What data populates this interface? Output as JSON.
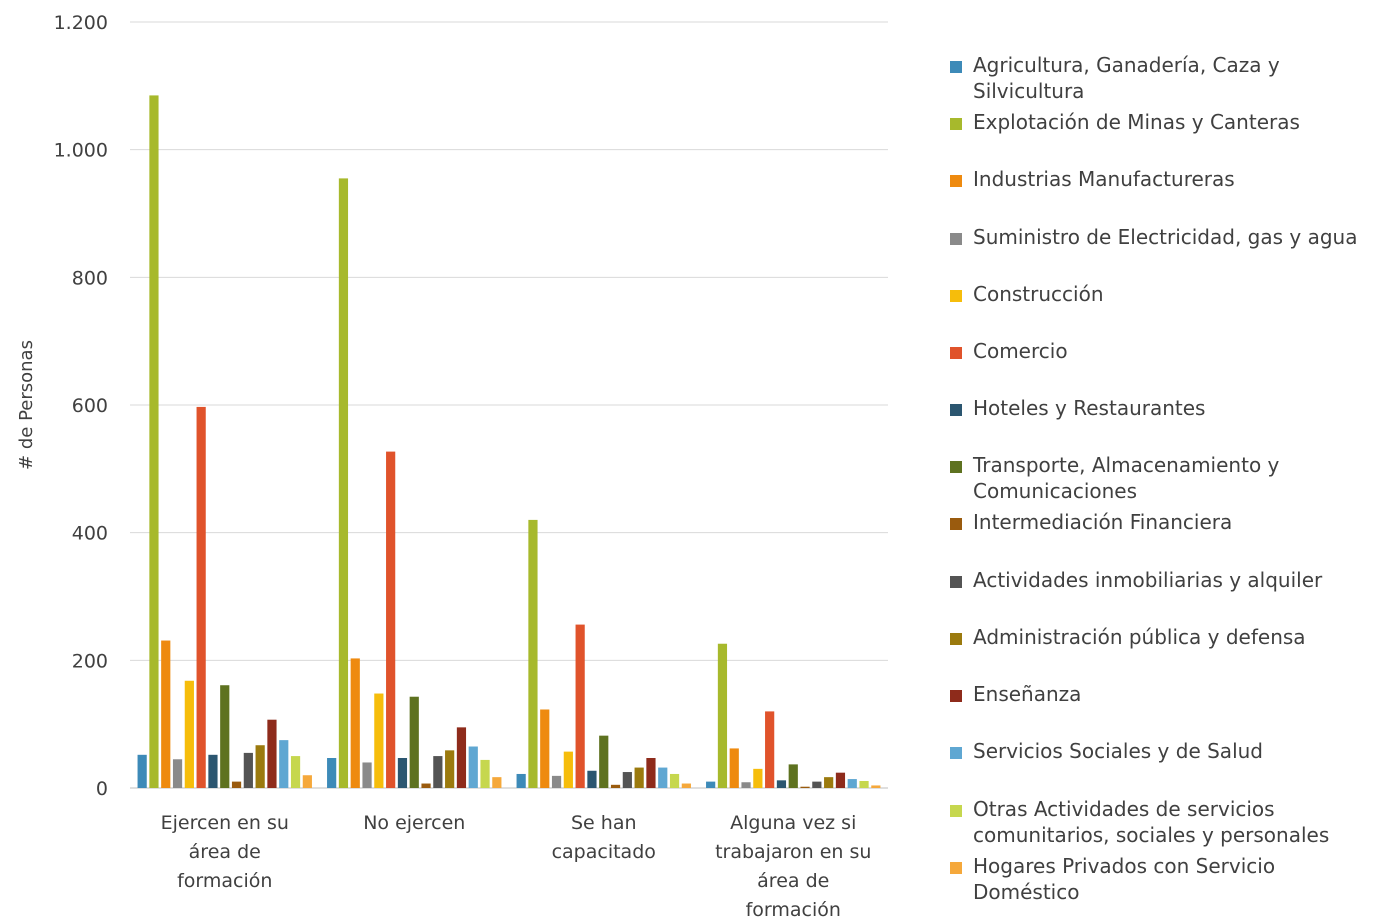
{
  "chart_data": {
    "type": "bar",
    "title": "",
    "xlabel": "",
    "ylabel": "# de Personas",
    "ylim": [
      0,
      1200
    ],
    "yticks": [
      0,
      200,
      400,
      600,
      800,
      1000,
      1200
    ],
    "ytick_labels": [
      "0",
      "200",
      "400",
      "600",
      "800",
      "1.000",
      "1.200"
    ],
    "grid": true,
    "legend_position": "right",
    "categories": [
      [
        "Ejercen en su",
        "área de",
        "formación"
      ],
      [
        "No ejercen"
      ],
      [
        "Se han",
        "capacitado"
      ],
      [
        "Alguna vez si",
        "trabajaron en su",
        "área de",
        "formación"
      ]
    ],
    "series": [
      {
        "name": "Agricultura, Ganadería, Caza y Silvicultura",
        "color": "#3d8ab8",
        "values": [
          52,
          47,
          22,
          10
        ]
      },
      {
        "name": "Explotación de Minas y Canteras",
        "color": "#a7b92c",
        "values": [
          1085,
          955,
          420,
          226
        ]
      },
      {
        "name": "Industrias Manufactureras",
        "color": "#ee8a0f",
        "values": [
          231,
          203,
          123,
          62
        ]
      },
      {
        "name": "Suministro de Electricidad, gas y agua",
        "color": "#8a8a8a",
        "values": [
          45,
          40,
          19,
          9
        ]
      },
      {
        "name": "Construcción",
        "color": "#f6bd0b",
        "values": [
          168,
          148,
          57,
          30
        ]
      },
      {
        "name": "Comercio",
        "color": "#e0532b",
        "values": [
          597,
          527,
          256,
          120
        ]
      },
      {
        "name": "Hoteles y Restaurantes",
        "color": "#2b5670",
        "values": [
          52,
          47,
          27,
          12
        ]
      },
      {
        "name": "Transporte, Almacenamiento y Comunicaciones",
        "color": "#5e7220",
        "values": [
          161,
          143,
          82,
          37
        ]
      },
      {
        "name": "Intermediación Financiera",
        "color": "#9a5b0e",
        "values": [
          10,
          7,
          5,
          2
        ]
      },
      {
        "name": "Actividades inmobiliarias y  alquiler",
        "color": "#545454",
        "values": [
          55,
          50,
          25,
          10
        ]
      },
      {
        "name": "Administración pública y defensa",
        "color": "#9b7a0e",
        "values": [
          67,
          59,
          32,
          17
        ]
      },
      {
        "name": "Enseñanza",
        "color": "#8e2b1b",
        "values": [
          107,
          95,
          47,
          24
        ]
      },
      {
        "name": "Servicios Sociales y de Salud",
        "color": "#5fa7d2",
        "values": [
          75,
          65,
          32,
          14
        ]
      },
      {
        "name": "Otras Actividades de servicios comunitarios, sociales y personales",
        "color": "#c6d74e",
        "values": [
          50,
          44,
          22,
          11
        ]
      },
      {
        "name": "Hogares Privados con Servicio Doméstico",
        "color": "#f5a83b",
        "values": [
          20,
          17,
          7,
          4
        ]
      }
    ]
  },
  "legend_lines": [
    [
      "Agricultura, Ganadería, Caza y",
      "Silvicultura"
    ],
    [
      "Explotación de Minas y Canteras"
    ],
    [
      "Industrias Manufactureras"
    ],
    [
      "Suministro de Electricidad, gas y agua"
    ],
    [
      "Construcción"
    ],
    [
      "Comercio"
    ],
    [
      "Hoteles y Restaurantes"
    ],
    [
      "Transporte, Almacenamiento y",
      "Comunicaciones"
    ],
    [
      "Intermediación Financiera"
    ],
    [
      "Actividades inmobiliarias y  alquiler"
    ],
    [
      "Administración pública y defensa"
    ],
    [
      "Enseñanza"
    ],
    [
      "Servicios Sociales y de Salud"
    ],
    [
      "Otras Actividades de servicios",
      "comunitarios, sociales y personales"
    ],
    [
      "Hogares Privados con Servicio",
      "Doméstico"
    ]
  ]
}
